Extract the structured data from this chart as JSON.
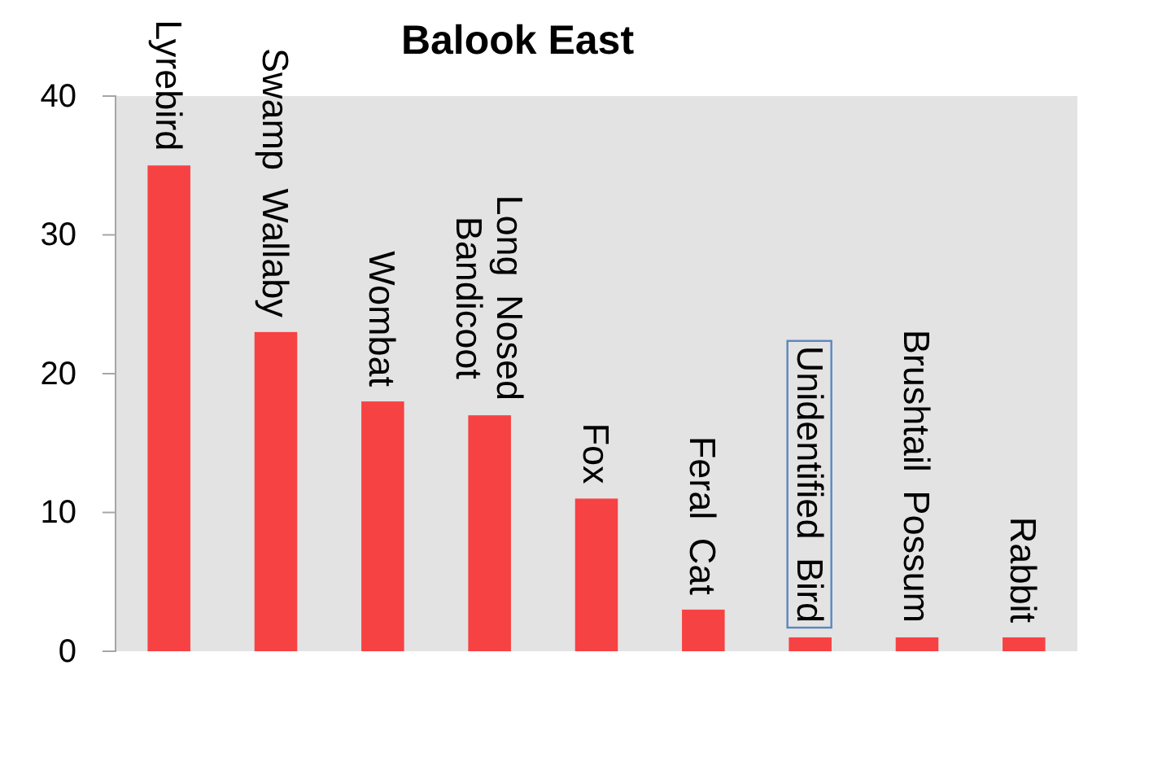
{
  "chart_data": {
    "type": "bar",
    "title": "Balook East",
    "categories": [
      "Lyrebird",
      "Swamp Wallaby",
      "Wombat",
      "Long Nosed\nBandicoot",
      "Fox",
      "Feral Cat",
      "Unidentified Bird",
      "Brushtail Possum",
      "Rabbit"
    ],
    "values": [
      35,
      23,
      18,
      17,
      11,
      3,
      1,
      1,
      1
    ],
    "color": "#f74244",
    "ylim": [
      0,
      40
    ],
    "yticks": [
      0,
      10,
      20,
      30,
      40
    ]
  }
}
